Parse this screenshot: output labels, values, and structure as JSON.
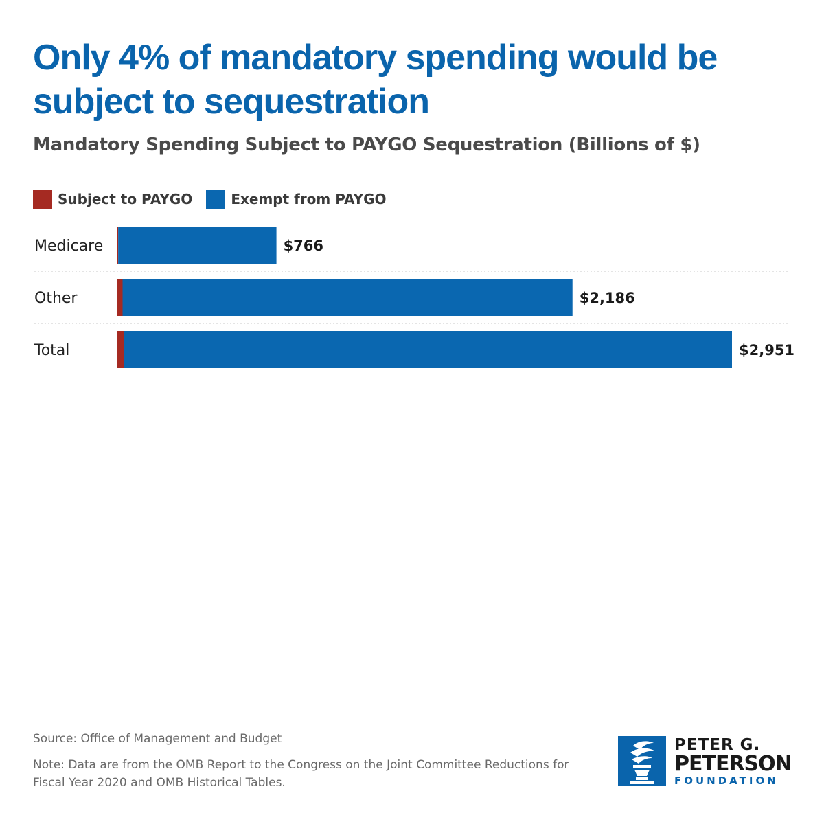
{
  "header": {
    "title": "Only 4% of mandatory spending would be subject to sequestration",
    "subtitle": "Mandatory Spending Subject to PAYGO Sequestration (Billions of $)"
  },
  "legend": [
    {
      "label": "Subject to PAYGO",
      "color": "#a52a22"
    },
    {
      "label": "Exempt from PAYGO",
      "color": "#0a67b0"
    }
  ],
  "chart_data": {
    "type": "bar",
    "orientation": "horizontal",
    "stacked": true,
    "title": "Mandatory Spending Subject to PAYGO Sequestration (Billions of $)",
    "categories": [
      "Medicare",
      "Other",
      "Total"
    ],
    "series": [
      {
        "name": "Subject to PAYGO",
        "color": "#a52a22",
        "values": [
          7,
          28,
          35
        ]
      },
      {
        "name": "Exempt from PAYGO",
        "color": "#0a67b0",
        "values": [
          759,
          2158,
          2916
        ]
      }
    ],
    "totals": [
      766,
      2186,
      2951
    ],
    "total_labels": [
      "$766",
      "$2,186",
      "$2,951"
    ],
    "xlim": [
      0,
      2951
    ],
    "grid": false,
    "legend_position": "top-left"
  },
  "footer": {
    "source": "Source: Office of Management and Budget",
    "note": "Note: Data are from the OMB Report to the Congress on the Joint Committee Reductions for Fiscal Year 2020 and OMB Historical Tables."
  },
  "logo": {
    "line1": "PETER G.",
    "line2": "PETERSON",
    "line3": "FOUNDATION",
    "color": "#0a64ac"
  }
}
